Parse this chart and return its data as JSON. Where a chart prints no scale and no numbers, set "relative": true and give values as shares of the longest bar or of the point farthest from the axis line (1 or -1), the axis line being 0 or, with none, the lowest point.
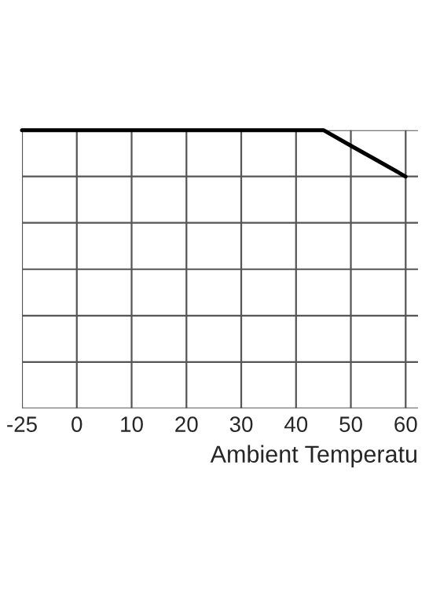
{
  "chart_data": {
    "type": "line",
    "relative": true,
    "xlabel": "Ambient Temperatu",
    "categories": [
      "-25",
      null,
      "0",
      null,
      "10",
      null,
      "20",
      null,
      "30",
      null,
      "40",
      null,
      "50",
      null,
      "60"
    ],
    "series": [
      {
        "color": "#000000",
        "values": [
          1,
          1,
          1,
          1,
          1,
          1,
          1,
          1,
          1,
          1,
          1,
          1,
          0.944,
          0.889,
          0.833
        ]
      }
    ],
    "grid": true,
    "marker": "none",
    "line_style": "solid"
  }
}
